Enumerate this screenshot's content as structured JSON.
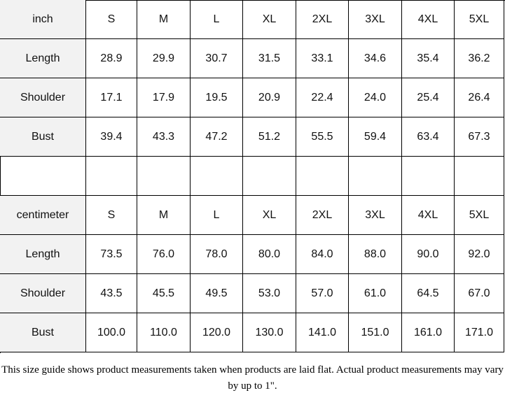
{
  "tables": [
    {
      "unit": "inch",
      "sizes": [
        "S",
        "M",
        "L",
        "XL",
        "2XL",
        "3XL",
        "4XL",
        "5XL"
      ],
      "rows": [
        {
          "label": "Length",
          "values": [
            "28.9",
            "29.9",
            "30.7",
            "31.5",
            "33.1",
            "34.6",
            "35.4",
            "36.2"
          ]
        },
        {
          "label": "Shoulder",
          "values": [
            "17.1",
            "17.9",
            "19.5",
            "20.9",
            "22.4",
            "24.0",
            "25.4",
            "26.4"
          ]
        },
        {
          "label": "Bust",
          "values": [
            "39.4",
            "43.3",
            "47.2",
            "51.2",
            "55.5",
            "59.4",
            "63.4",
            "67.3"
          ]
        }
      ]
    },
    {
      "unit": "centimeter",
      "sizes": [
        "S",
        "M",
        "L",
        "XL",
        "2XL",
        "3XL",
        "4XL",
        "5XL"
      ],
      "rows": [
        {
          "label": "Length",
          "values": [
            "73.5",
            "76.0",
            "78.0",
            "80.0",
            "84.0",
            "88.0",
            "90.0",
            "92.0"
          ]
        },
        {
          "label": "Shoulder",
          "values": [
            "43.5",
            "45.5",
            "49.5",
            "53.0",
            "57.0",
            "61.0",
            "64.5",
            "67.0"
          ]
        },
        {
          "label": "Bust",
          "values": [
            "100.0",
            "110.0",
            "120.0",
            "130.0",
            "141.0",
            "151.0",
            "161.0",
            "171.0"
          ]
        }
      ]
    }
  ],
  "note": "This size guide shows product measurements taken when products are laid flat. Actual product measurements may vary by up to 1\"."
}
